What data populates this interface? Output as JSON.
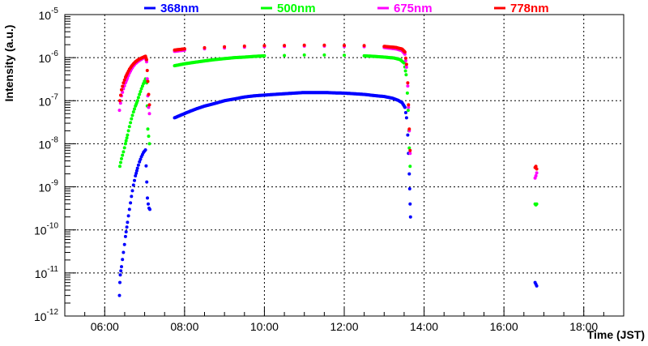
{
  "chart_data": {
    "type": "scatter",
    "title": "",
    "xlabel": "Time (JST)",
    "ylabel": "Intensity (a.u.)",
    "x_unit": "hours (JST)",
    "xlim": [
      5.0,
      19.0
    ],
    "ylim": [
      1e-12,
      1e-05
    ],
    "y_scale": "log",
    "grid": true,
    "legend_position": "top",
    "x_ticks": [
      {
        "value": 6,
        "label": "06:00"
      },
      {
        "value": 8,
        "label": "08:00"
      },
      {
        "value": 10,
        "label": "10:00"
      },
      {
        "value": 12,
        "label": "12:00"
      },
      {
        "value": 14,
        "label": "14:00"
      },
      {
        "value": 16,
        "label": "16:00"
      },
      {
        "value": 18,
        "label": "18:00"
      }
    ],
    "y_ticks": [
      {
        "value": 1e-12,
        "base": "10",
        "exp": "-12"
      },
      {
        "value": 1e-11,
        "base": "10",
        "exp": "-11"
      },
      {
        "value": 1e-10,
        "base": "10",
        "exp": "-10"
      },
      {
        "value": 1e-09,
        "base": "10",
        "exp": "-9"
      },
      {
        "value": 1e-08,
        "base": "10",
        "exp": "-8"
      },
      {
        "value": 1e-07,
        "base": "10",
        "exp": "-7"
      },
      {
        "value": 1e-06,
        "base": "10",
        "exp": "-6"
      },
      {
        "value": 1e-05,
        "base": "10",
        "exp": "-5"
      }
    ],
    "series": [
      {
        "name": "368nm",
        "color": "#0000ff",
        "points": [
          [
            6.37,
            3e-12
          ],
          [
            6.38,
            6e-12
          ],
          [
            6.39,
            9e-12
          ],
          [
            6.42,
            1.4e-11
          ],
          [
            6.47,
            3e-11
          ],
          [
            6.52,
            7e-11
          ],
          [
            6.57,
            1.5e-10
          ],
          [
            6.62,
            3e-10
          ],
          [
            6.67,
            6e-10
          ],
          [
            6.72,
            1.1e-09
          ],
          [
            6.77,
            1.8e-09
          ],
          [
            6.82,
            2.7e-09
          ],
          [
            6.87,
            3.8e-09
          ],
          [
            6.92,
            5e-09
          ],
          [
            6.97,
            6.3e-09
          ],
          [
            7.02,
            7.2e-09
          ],
          [
            7.07,
            5.5e-10
          ],
          [
            7.09,
            4e-10
          ],
          [
            7.11,
            3.2e-10
          ],
          [
            7.13,
            3e-10
          ],
          [
            7.75,
            4e-08
          ],
          [
            7.9,
            4.6e-08
          ],
          [
            8.1,
            5.5e-08
          ],
          [
            8.3,
            6.5e-08
          ],
          [
            8.5,
            7.5e-08
          ],
          [
            8.75,
            8.6e-08
          ],
          [
            9.0,
            1e-07
          ],
          [
            9.25,
            1.1e-07
          ],
          [
            9.5,
            1.22e-07
          ],
          [
            9.75,
            1.3e-07
          ],
          [
            10.0,
            1.35e-07
          ],
          [
            10.25,
            1.4e-07
          ],
          [
            10.5,
            1.45e-07
          ],
          [
            10.75,
            1.5e-07
          ],
          [
            11.0,
            1.55e-07
          ],
          [
            11.25,
            1.55e-07
          ],
          [
            11.5,
            1.55e-07
          ],
          [
            11.75,
            1.52e-07
          ],
          [
            12.0,
            1.5e-07
          ],
          [
            12.25,
            1.45e-07
          ],
          [
            12.5,
            1.4e-07
          ],
          [
            12.75,
            1.32e-07
          ],
          [
            13.0,
            1.25e-07
          ],
          [
            13.2,
            1.15e-07
          ],
          [
            13.35,
            1.02e-07
          ],
          [
            13.45,
            9e-08
          ],
          [
            13.52,
            7e-08
          ],
          [
            13.56,
            4e-08
          ],
          [
            13.59,
            1.6e-08
          ],
          [
            13.61,
            6e-09
          ],
          [
            13.63,
            2e-09
          ],
          [
            13.64,
            9e-10
          ],
          [
            13.65,
            4e-10
          ],
          [
            13.66,
            2e-10
          ],
          [
            16.78,
            6e-12
          ],
          [
            16.8,
            5.5e-12
          ],
          [
            16.82,
            5e-12
          ]
        ]
      },
      {
        "name": "500nm",
        "color": "#00ff00",
        "points": [
          [
            6.38,
            3e-09
          ],
          [
            6.42,
            4.5e-09
          ],
          [
            6.47,
            6.5e-09
          ],
          [
            6.52,
            1e-08
          ],
          [
            6.57,
            1.6e-08
          ],
          [
            6.62,
            2.5e-08
          ],
          [
            6.67,
            3.8e-08
          ],
          [
            6.72,
            5.5e-08
          ],
          [
            6.77,
            7.5e-08
          ],
          [
            6.82,
            1e-07
          ],
          [
            6.87,
            1.4e-07
          ],
          [
            6.92,
            1.9e-07
          ],
          [
            6.97,
            2.5e-07
          ],
          [
            7.02,
            3.2e-07
          ],
          [
            7.05,
            2.6e-07
          ],
          [
            7.08,
            2.2e-08
          ],
          [
            7.1,
            1.5e-08
          ],
          [
            7.12,
            1e-08
          ],
          [
            7.75,
            6.5e-07
          ],
          [
            8.0,
            7.2e-07
          ],
          [
            8.25,
            7.8e-07
          ],
          [
            8.5,
            8.4e-07
          ],
          [
            8.75,
            9e-07
          ],
          [
            9.0,
            9.5e-07
          ],
          [
            9.25,
            1e-06
          ],
          [
            9.5,
            1.03e-06
          ],
          [
            9.75,
            1.07e-06
          ],
          [
            10.0,
            1.1e-06
          ],
          [
            10.5,
            1.12e-06
          ],
          [
            11.0,
            1.15e-06
          ],
          [
            11.5,
            1.15e-06
          ],
          [
            12.0,
            1.13e-06
          ],
          [
            12.5,
            1.1e-06
          ],
          [
            12.75,
            1.07e-06
          ],
          [
            13.0,
            1.03e-06
          ],
          [
            13.25,
            9.8e-07
          ],
          [
            13.4,
            9e-07
          ],
          [
            13.5,
            7.5e-07
          ],
          [
            13.55,
            4e-07
          ],
          [
            13.58,
            1.5e-07
          ],
          [
            13.6,
            6e-08
          ],
          [
            13.62,
            2e-08
          ],
          [
            13.63,
            8e-09
          ],
          [
            13.65,
            3e-09
          ],
          [
            16.78,
            4e-10
          ],
          [
            16.8,
            3.8e-10
          ],
          [
            16.82,
            4e-10
          ]
        ]
      },
      {
        "name": "675nm",
        "color": "#ff00ff",
        "points": [
          [
            6.37,
            6e-08
          ],
          [
            6.42,
            1.3e-07
          ],
          [
            6.47,
            1.9e-07
          ],
          [
            6.52,
            2.6e-07
          ],
          [
            6.57,
            3.4e-07
          ],
          [
            6.62,
            4.4e-07
          ],
          [
            6.67,
            5.4e-07
          ],
          [
            6.72,
            6.4e-07
          ],
          [
            6.77,
            7.3e-07
          ],
          [
            6.82,
            8e-07
          ],
          [
            6.87,
            8.6e-07
          ],
          [
            6.92,
            9.2e-07
          ],
          [
            6.97,
            9.8e-07
          ],
          [
            7.02,
            1e-06
          ],
          [
            7.05,
            8e-07
          ],
          [
            7.08,
            1.3e-07
          ],
          [
            7.1,
            7e-08
          ],
          [
            7.12,
            5e-08
          ],
          [
            7.75,
            1.4e-06
          ],
          [
            8.0,
            1.5e-06
          ],
          [
            8.5,
            1.6e-06
          ],
          [
            9.0,
            1.68e-06
          ],
          [
            9.5,
            1.75e-06
          ],
          [
            10.0,
            1.8e-06
          ],
          [
            10.5,
            1.82e-06
          ],
          [
            11.0,
            1.85e-06
          ],
          [
            11.5,
            1.85e-06
          ],
          [
            12.0,
            1.83e-06
          ],
          [
            12.5,
            1.8e-06
          ],
          [
            13.0,
            1.72e-06
          ],
          [
            13.3,
            1.6e-06
          ],
          [
            13.45,
            1.45e-06
          ],
          [
            13.52,
            1.2e-06
          ],
          [
            13.56,
            6e-07
          ],
          [
            13.59,
            2.2e-07
          ],
          [
            13.61,
            7e-08
          ],
          [
            13.63,
            2e-08
          ],
          [
            13.65,
            6e-09
          ],
          [
            16.78,
            1.6e-09
          ],
          [
            16.8,
            1.8e-09
          ],
          [
            16.82,
            2.1e-09
          ]
        ]
      },
      {
        "name": "778nm",
        "color": "#ff0000",
        "points": [
          [
            6.38,
            1e-07
          ],
          [
            6.42,
            1.8e-07
          ],
          [
            6.47,
            2.6e-07
          ],
          [
            6.52,
            3.5e-07
          ],
          [
            6.57,
            4.4e-07
          ],
          [
            6.62,
            5.4e-07
          ],
          [
            6.67,
            6.3e-07
          ],
          [
            6.72,
            7.2e-07
          ],
          [
            6.77,
            8e-07
          ],
          [
            6.82,
            8.7e-07
          ],
          [
            6.87,
            9.3e-07
          ],
          [
            6.92,
            9.8e-07
          ],
          [
            6.97,
            1.03e-06
          ],
          [
            7.02,
            1.08e-06
          ],
          [
            7.05,
            9e-07
          ],
          [
            7.08,
            2.8e-07
          ],
          [
            7.1,
            1.4e-07
          ],
          [
            7.12,
            8e-08
          ],
          [
            7.75,
            1.5e-06
          ],
          [
            8.0,
            1.6e-06
          ],
          [
            8.5,
            1.7e-06
          ],
          [
            9.0,
            1.78e-06
          ],
          [
            9.5,
            1.85e-06
          ],
          [
            10.0,
            1.9e-06
          ],
          [
            10.5,
            1.92e-06
          ],
          [
            11.0,
            1.95e-06
          ],
          [
            11.5,
            1.95e-06
          ],
          [
            12.0,
            1.93e-06
          ],
          [
            12.5,
            1.9e-06
          ],
          [
            13.0,
            1.83e-06
          ],
          [
            13.3,
            1.72e-06
          ],
          [
            13.45,
            1.58e-06
          ],
          [
            13.52,
            1.35e-06
          ],
          [
            13.56,
            7e-07
          ],
          [
            13.59,
            2.6e-07
          ],
          [
            13.61,
            8e-08
          ],
          [
            13.63,
            2.2e-08
          ],
          [
            13.65,
            7e-09
          ],
          [
            16.78,
            2.8e-09
          ],
          [
            16.8,
            3e-09
          ],
          [
            16.82,
            2.6e-09
          ]
        ]
      }
    ]
  }
}
